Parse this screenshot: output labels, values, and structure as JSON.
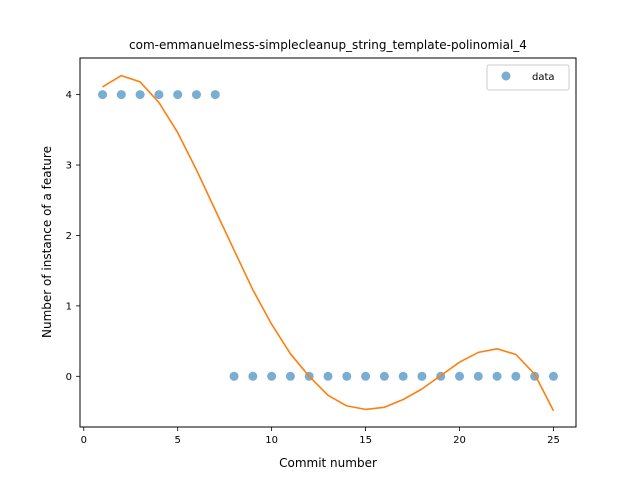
{
  "chart_data": {
    "type": "scatter",
    "title": "com-emmanuelmess-simplecleanup_string_template-polinomial_4",
    "xlabel": "Commit number",
    "ylabel": "Number of instance of a feature",
    "xlim": [
      -0.2,
      26.2
    ],
    "ylim": [
      -0.72,
      4.52
    ],
    "xticks": [
      0,
      5,
      10,
      15,
      20,
      25
    ],
    "yticks": [
      0,
      1,
      2,
      3,
      4
    ],
    "grid": false,
    "legend": {
      "position": "top-right",
      "entries": [
        "data"
      ]
    },
    "colors": {
      "data": "#1f77b4",
      "fit": "#ff7f0e"
    },
    "series": [
      {
        "name": "data",
        "kind": "scatter",
        "x": [
          1,
          2,
          3,
          4,
          5,
          6,
          7,
          8,
          9,
          10,
          11,
          12,
          13,
          14,
          15,
          16,
          17,
          18,
          19,
          20,
          21,
          22,
          23,
          24,
          25
        ],
        "y": [
          4,
          4,
          4,
          4,
          4,
          4,
          4,
          0,
          0,
          0,
          0,
          0,
          0,
          0,
          0,
          0,
          0,
          0,
          0,
          0,
          0,
          0,
          0,
          0,
          0
        ]
      },
      {
        "kind": "line",
        "x": [
          1,
          2,
          3,
          4,
          5,
          6,
          7,
          8,
          9,
          10,
          11,
          12,
          13,
          14,
          15,
          16,
          17,
          18,
          19,
          20,
          21,
          22,
          23,
          24,
          25
        ],
        "y": [
          4.11,
          4.27,
          4.18,
          3.89,
          3.46,
          2.93,
          2.36,
          1.79,
          1.23,
          0.74,
          0.32,
          0.0,
          -0.27,
          -0.42,
          -0.47,
          -0.44,
          -0.33,
          -0.18,
          0.01,
          0.2,
          0.34,
          0.39,
          0.31,
          0.03,
          -0.49
        ]
      }
    ]
  }
}
